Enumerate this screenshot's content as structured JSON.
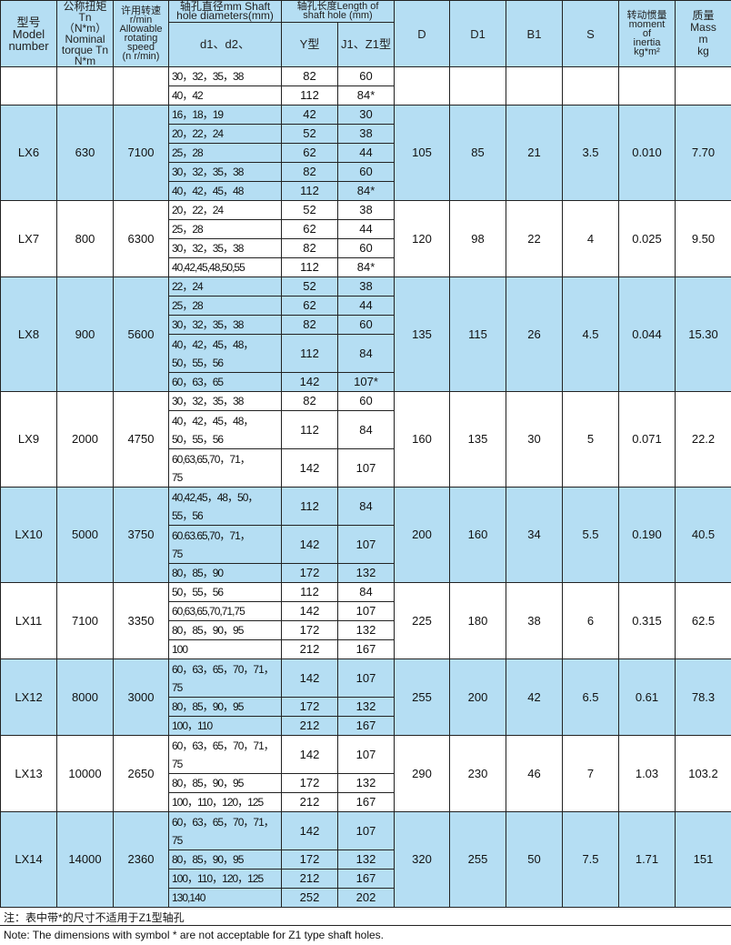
{
  "header": {
    "model": "型号\nModel\nnumber",
    "torque": "公称扭矩\nTn（N*m）\nNominal\ntorque Tn\nN*m",
    "speed": "许用转速\nr/min\nAllowable\nrotating\nspeed\n(n r/min)",
    "shaft_dia": "轴孔直径mm  Shaft\nhole diameters(mm)",
    "shaft_len": "轴孔长度Length of\nshaft hole (mm)",
    "d_col": "d1、d2、",
    "y_col": "Y型",
    "j_col": "J1、Z1型",
    "D": "D",
    "D1": "D1",
    "B1": "B1",
    "S": "S",
    "inertia": "转动惯量\nmoment\nof\ninertia\nkg*m²",
    "mass": "质量\nMass\nm\nkg"
  },
  "groups": [
    {
      "model": "",
      "torque": "",
      "speed": "",
      "D": "",
      "D1": "",
      "B1": "",
      "S": "",
      "inertia": "",
      "mass": "",
      "color": "white",
      "rows": [
        {
          "d": "30，32，35，38",
          "y": "82",
          "j": "60"
        },
        {
          "d": "40，42",
          "y": "112",
          "j": "84*"
        }
      ]
    },
    {
      "model": "LX6",
      "torque": "630",
      "speed": "7100",
      "D": "105",
      "D1": "85",
      "B1": "21",
      "S": "3.5",
      "inertia": "0.010",
      "mass": "7.70",
      "color": "blue",
      "rows": [
        {
          "d": "16，18，19",
          "y": "42",
          "j": "30"
        },
        {
          "d": "20，22，24",
          "y": "52",
          "j": "38"
        },
        {
          "d": "25，28",
          "y": "62",
          "j": "44"
        },
        {
          "d": "30，32，35，38",
          "y": "82",
          "j": "60"
        },
        {
          "d": "40，42，45，48",
          "y": "112",
          "j": "84*"
        }
      ]
    },
    {
      "model": "LX7",
      "torque": "800",
      "speed": "6300",
      "D": "120",
      "D1": "98",
      "B1": "22",
      "S": "4",
      "inertia": "0.025",
      "mass": "9.50",
      "color": "white",
      "rows": [
        {
          "d": "20，22，24",
          "y": "52",
          "j": "38"
        },
        {
          "d": "25，28",
          "y": "62",
          "j": "44"
        },
        {
          "d": "30，32，35，38",
          "y": "82",
          "j": "60"
        },
        {
          "d": "40,42,45,48,50,55",
          "y": "112",
          "j": "84*"
        }
      ]
    },
    {
      "model": "LX8",
      "torque": "900",
      "speed": "5600",
      "D": "135",
      "D1": "115",
      "B1": "26",
      "S": "4.5",
      "inertia": "0.044",
      "mass": "15.30",
      "color": "blue",
      "rows": [
        {
          "d": "22，24",
          "y": "52",
          "j": "38"
        },
        {
          "d": "25，28",
          "y": "62",
          "j": "44"
        },
        {
          "d": "30，32，35，38",
          "y": "82",
          "j": "60"
        },
        {
          "d": "40，42，45，48，\n50，55，56",
          "y": "112",
          "j": "84"
        },
        {
          "d": "60，63，65",
          "y": "142",
          "j": "107*"
        }
      ]
    },
    {
      "model": "LX9",
      "torque": "2000",
      "speed": "4750",
      "D": "160",
      "D1": "135",
      "B1": "30",
      "S": "5",
      "inertia": "0.071",
      "mass": "22.2",
      "color": "white",
      "rows": [
        {
          "d": "30，32，35，38",
          "y": "82",
          "j": "60"
        },
        {
          "d": "40，42，45，48，\n50，55，56",
          "y": "112",
          "j": "84"
        },
        {
          "d": "60,63,65,70，71，\n75",
          "y": "142",
          "j": "107"
        }
      ]
    },
    {
      "model": "LX10",
      "torque": "5000",
      "speed": "3750",
      "D": "200",
      "D1": "160",
      "B1": "34",
      "S": "5.5",
      "inertia": "0.190",
      "mass": "40.5",
      "color": "blue",
      "rows": [
        {
          "d": "40,42,45，48，50，\n55，56",
          "y": "112",
          "j": "84"
        },
        {
          "d": "60.63.65,70，71，\n75",
          "y": "142",
          "j": "107"
        },
        {
          "d": "80，85，90",
          "y": "172",
          "j": "132"
        }
      ]
    },
    {
      "model": "LX11",
      "torque": "7100",
      "speed": "3350",
      "D": "225",
      "D1": "180",
      "B1": "38",
      "S": "6",
      "inertia": "0.315",
      "mass": "62.5",
      "color": "white",
      "rows": [
        {
          "d": "50，55，56",
          "y": "112",
          "j": "84"
        },
        {
          "d": "60,63,65,70,71,75",
          "y": "142",
          "j": "107"
        },
        {
          "d": "80，85，90，95",
          "y": "172",
          "j": "132"
        },
        {
          "d": "100",
          "y": "212",
          "j": "167"
        }
      ]
    },
    {
      "model": "LX12",
      "torque": "8000",
      "speed": "3000",
      "D": "255",
      "D1": "200",
      "B1": "42",
      "S": "6.5",
      "inertia": "0.61",
      "mass": "78.3",
      "color": "blue",
      "rows": [
        {
          "d": "60，63，65，70，71，\n75",
          "y": "142",
          "j": "107"
        },
        {
          "d": "80，85，90，95",
          "y": "172",
          "j": "132"
        },
        {
          "d": "100，110",
          "y": "212",
          "j": "167"
        }
      ]
    },
    {
      "model": "LX13",
      "torque": "10000",
      "speed": "2650",
      "D": "290",
      "D1": "230",
      "B1": "46",
      "S": "7",
      "inertia": "1.03",
      "mass": "103.2",
      "color": "white",
      "rows": [
        {
          "d": "60，63，65，70，71，\n75",
          "y": "142",
          "j": "107"
        },
        {
          "d": "80，85，90，95",
          "y": "172",
          "j": "132"
        },
        {
          "d": "100，110，120，125",
          "y": "212",
          "j": "167"
        }
      ]
    },
    {
      "model": "LX14",
      "torque": "14000",
      "speed": "2360",
      "D": "320",
      "D1": "255",
      "B1": "50",
      "S": "7.5",
      "inertia": "1.71",
      "mass": "151",
      "color": "blue",
      "rows": [
        {
          "d": "60，63，65，70，71，\n75",
          "y": "142",
          "j": "107"
        },
        {
          "d": "80，85，90，95",
          "y": "172",
          "j": "132"
        },
        {
          "d": "100，110，120，125",
          "y": "212",
          "j": "167"
        },
        {
          "d": "130,140",
          "y": "252",
          "j": "202"
        }
      ]
    }
  ],
  "notes": {
    "cn": "注：表中带*的尺寸不适用于Z1型轴孔",
    "en": "Note: The dimensions with symbol * are not acceptable for Z1 type shaft holes."
  },
  "colors": {
    "row_blue": "#b5def3",
    "border": "#222222"
  }
}
